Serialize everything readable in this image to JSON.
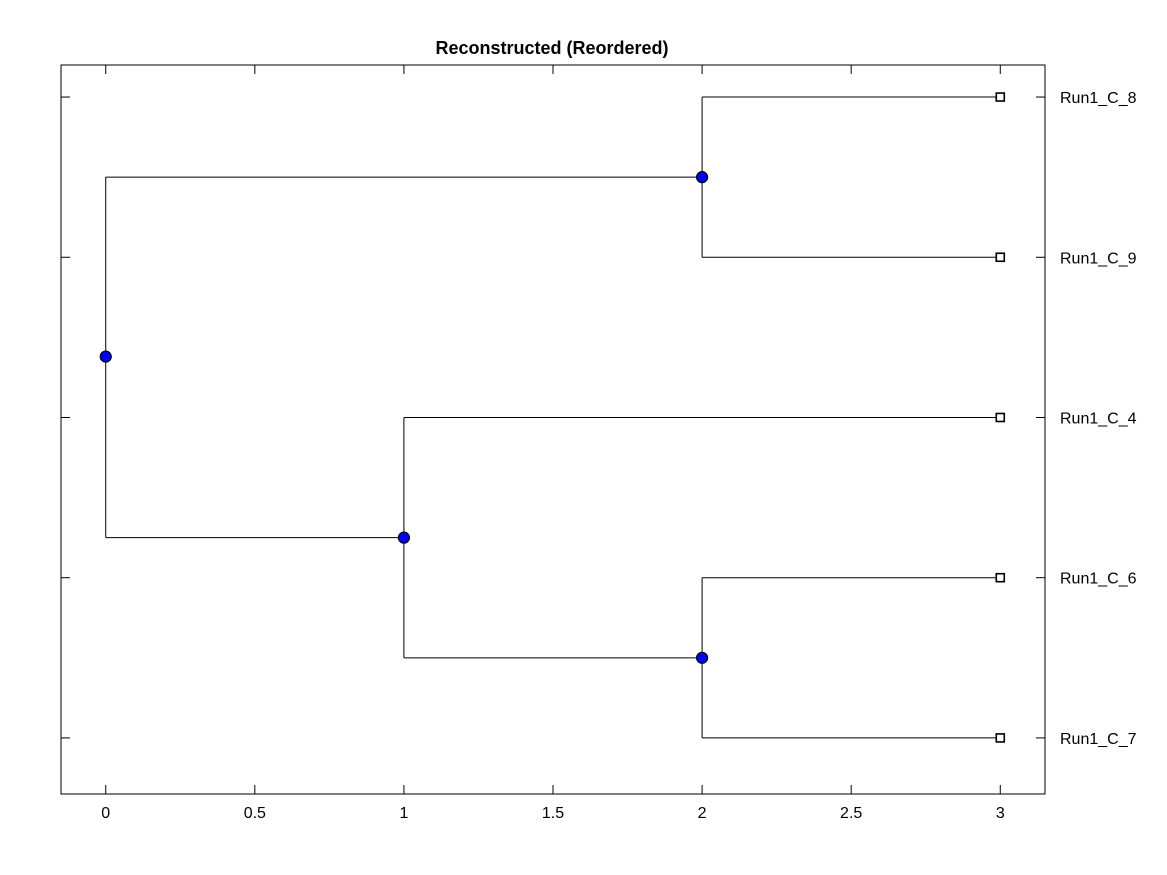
{
  "chart_data": {
    "type": "dendrogram",
    "title": "Reconstructed (Reordered)",
    "xlabel": "",
    "ylabel": "",
    "xlim": [
      -0.15,
      3.15
    ],
    "ylim": [
      0.65,
      5.2
    ],
    "x_ticks": [
      0,
      0.5,
      1,
      1.5,
      2,
      2.5,
      3
    ],
    "x_tick_labels": [
      "0",
      "0.5",
      "1",
      "1.5",
      "2",
      "2.5",
      "3"
    ],
    "y_ticks": [
      1,
      2,
      3,
      4,
      5
    ],
    "grid": false,
    "colors": {
      "internal_node": "#0000ff",
      "leaf_node": "#ffffff",
      "line": "#000000"
    },
    "leaves": [
      {
        "id": "L8",
        "label": "Run1_C_8",
        "x": 3,
        "y": 5
      },
      {
        "id": "L9",
        "label": "Run1_C_9",
        "x": 3,
        "y": 4
      },
      {
        "id": "L4",
        "label": "Run1_C_4",
        "x": 3,
        "y": 3
      },
      {
        "id": "L6",
        "label": "Run1_C_6",
        "x": 3,
        "y": 2
      },
      {
        "id": "L7",
        "label": "Run1_C_7",
        "x": 3,
        "y": 1
      }
    ],
    "internal_nodes": [
      {
        "id": "N_root",
        "x": 0,
        "y": 3.38,
        "children": [
          "N_top",
          "N_mid"
        ]
      },
      {
        "id": "N_top",
        "x": 2,
        "y": 4.5,
        "children": [
          "L8",
          "L9"
        ]
      },
      {
        "id": "N_mid",
        "x": 1,
        "y": 2.25,
        "children": [
          "L4",
          "N_low"
        ]
      },
      {
        "id": "N_low",
        "x": 2,
        "y": 1.5,
        "children": [
          "L6",
          "L7"
        ]
      }
    ]
  }
}
